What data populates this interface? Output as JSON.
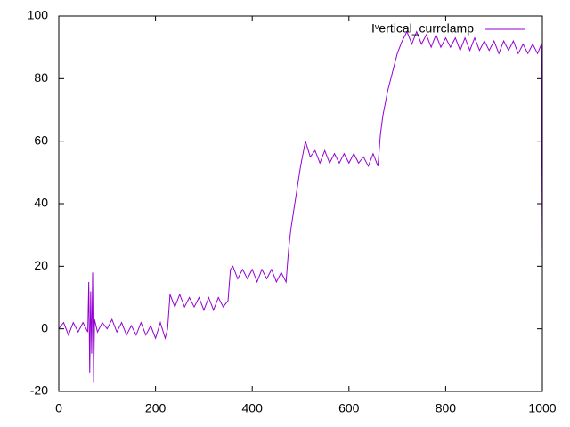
{
  "chart_data": {
    "type": "line",
    "x": [
      0,
      10,
      20,
      30,
      40,
      50,
      60,
      62,
      64,
      66,
      68,
      70,
      72,
      74,
      80,
      90,
      100,
      110,
      120,
      130,
      140,
      150,
      160,
      170,
      180,
      190,
      200,
      210,
      220,
      225,
      230,
      240,
      250,
      260,
      270,
      280,
      290,
      300,
      310,
      320,
      330,
      340,
      350,
      355,
      360,
      370,
      380,
      390,
      400,
      410,
      420,
      430,
      440,
      450,
      460,
      470,
      475,
      480,
      490,
      500,
      510,
      520,
      530,
      540,
      550,
      560,
      570,
      580,
      590,
      600,
      610,
      620,
      630,
      640,
      650,
      660,
      665,
      670,
      680,
      690,
      700,
      710,
      720,
      730,
      740,
      750,
      760,
      770,
      780,
      790,
      800,
      810,
      820,
      830,
      840,
      850,
      860,
      870,
      880,
      890,
      900,
      910,
      920,
      930,
      940,
      950,
      960,
      970,
      980,
      990,
      998,
      1000
    ],
    "series": [
      {
        "name": "Iᵛertical_currclamp",
        "color": "#9400d3",
        "values": [
          0,
          2,
          -2,
          2,
          -1,
          2,
          -1,
          15,
          -14,
          12,
          -8,
          18,
          -17,
          3,
          -1,
          2,
          0,
          3,
          -1,
          2,
          -2,
          1,
          -2,
          2,
          -2,
          1,
          -3,
          2,
          -3,
          0,
          11,
          7,
          11,
          7,
          10,
          7,
          10,
          6,
          10,
          6,
          10,
          7,
          9,
          19,
          20,
          16,
          19,
          16,
          19,
          15,
          19,
          16,
          19,
          15,
          18,
          15,
          25,
          32,
          42,
          52,
          60,
          55,
          57,
          53,
          57,
          53,
          56,
          53,
          56,
          53,
          56,
          53,
          55,
          52,
          56,
          52,
          62,
          68,
          76,
          82,
          88,
          92,
          95,
          91,
          95,
          91,
          94,
          90,
          94,
          90,
          93,
          90,
          93,
          89,
          93,
          89,
          93,
          89,
          92,
          89,
          92,
          88,
          92,
          89,
          92,
          88,
          91,
          88,
          91,
          88,
          91,
          20
        ]
      }
    ],
    "xlim": [
      0,
      1000
    ],
    "ylim": [
      -20,
      100
    ],
    "xticks": [
      0,
      200,
      400,
      600,
      800,
      1000
    ],
    "yticks": [
      -20,
      0,
      20,
      40,
      60,
      80,
      100
    ],
    "legend": "top-right"
  }
}
